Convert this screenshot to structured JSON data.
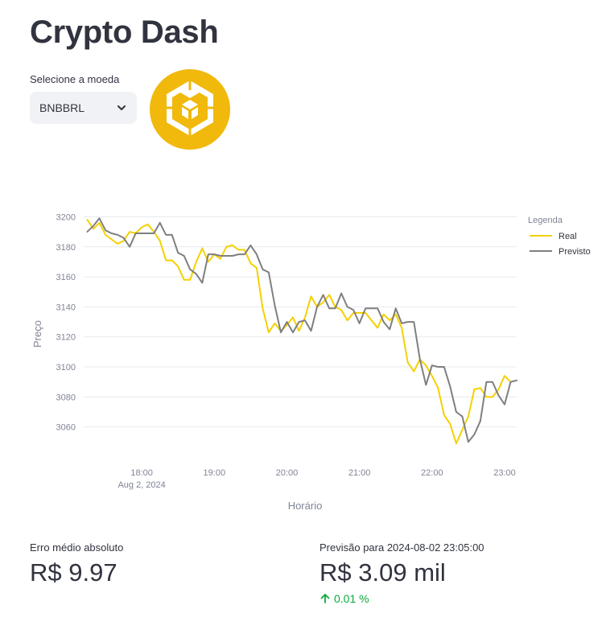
{
  "page": {
    "title": "Crypto Dash"
  },
  "coin_select": {
    "label": "Selecione a moeda",
    "value": "BNBBRL",
    "logo_color": "#f0b90b"
  },
  "chart_data": {
    "type": "line",
    "title": "",
    "xlabel": "Horário",
    "ylabel": "Preço",
    "ylim": [
      3040,
      3204
    ],
    "yticks": [
      3060,
      3080,
      3100,
      3120,
      3140,
      3160,
      3180,
      3200
    ],
    "x_ticks": [
      {
        "label": "18:00",
        "sublabel": "Aug 2, 2024"
      },
      {
        "label": "19:00",
        "sublabel": ""
      },
      {
        "label": "20:00",
        "sublabel": ""
      },
      {
        "label": "21:00",
        "sublabel": ""
      },
      {
        "label": "22:00",
        "sublabel": ""
      },
      {
        "label": "23:00",
        "sublabel": ""
      }
    ],
    "grid": "horizontal",
    "legend_title": "Legenda",
    "legend_position": "right",
    "series": [
      {
        "name": "Real",
        "color": "#f5d000",
        "points": [
          [
            "17:15",
            3198
          ],
          [
            "17:20",
            3192
          ],
          [
            "17:25",
            3196
          ],
          [
            "17:30",
            3188
          ],
          [
            "17:35",
            3185
          ],
          [
            "17:40",
            3182
          ],
          [
            "17:45",
            3184
          ],
          [
            "17:50",
            3190
          ],
          [
            "17:55",
            3189
          ],
          [
            "18:00",
            3193
          ],
          [
            "18:05",
            3195
          ],
          [
            "18:10",
            3190
          ],
          [
            "18:15",
            3184
          ],
          [
            "18:20",
            3171
          ],
          [
            "18:25",
            3171
          ],
          [
            "18:30",
            3167
          ],
          [
            "18:35",
            3158
          ],
          [
            "18:40",
            3158
          ],
          [
            "18:45",
            3170
          ],
          [
            "18:50",
            3179
          ],
          [
            "18:55",
            3170
          ],
          [
            "19:00",
            3175
          ],
          [
            "19:05",
            3172
          ],
          [
            "19:10",
            3180
          ],
          [
            "19:15",
            3181
          ],
          [
            "19:20",
            3178
          ],
          [
            "19:25",
            3178
          ],
          [
            "19:30",
            3169
          ],
          [
            "19:35",
            3166
          ],
          [
            "19:40",
            3139
          ],
          [
            "19:45",
            3123
          ],
          [
            "19:50",
            3129
          ],
          [
            "19:55",
            3124
          ],
          [
            "20:00",
            3128
          ],
          [
            "20:05",
            3133
          ],
          [
            "20:10",
            3124
          ],
          [
            "20:15",
            3133
          ],
          [
            "20:20",
            3147
          ],
          [
            "20:25",
            3140
          ],
          [
            "20:30",
            3143
          ],
          [
            "20:35",
            3148
          ],
          [
            "20:40",
            3140
          ],
          [
            "20:45",
            3138
          ],
          [
            "20:50",
            3131
          ],
          [
            "20:55",
            3136
          ],
          [
            "21:00",
            3136
          ],
          [
            "21:05",
            3136
          ],
          [
            "21:10",
            3131
          ],
          [
            "21:15",
            3126
          ],
          [
            "21:20",
            3135
          ],
          [
            "21:25",
            3131
          ],
          [
            "21:30",
            3135
          ],
          [
            "21:35",
            3126
          ],
          [
            "21:40",
            3103
          ],
          [
            "21:45",
            3097
          ],
          [
            "21:50",
            3105
          ],
          [
            "21:55",
            3101
          ],
          [
            "22:00",
            3094
          ],
          [
            "22:05",
            3086
          ],
          [
            "22:10",
            3068
          ],
          [
            "22:15",
            3062
          ],
          [
            "22:20",
            3049
          ],
          [
            "22:25",
            3058
          ],
          [
            "22:30",
            3067
          ],
          [
            "22:35",
            3085
          ],
          [
            "22:40",
            3086
          ],
          [
            "22:45",
            3080
          ],
          [
            "22:50",
            3080
          ],
          [
            "22:55",
            3085
          ],
          [
            "23:00",
            3094
          ],
          [
            "23:05",
            3090
          ]
        ]
      },
      {
        "name": "Previsto",
        "color": "#7f7f7f",
        "points": [
          [
            "17:15",
            3190
          ],
          [
            "17:20",
            3194
          ],
          [
            "17:25",
            3199
          ],
          [
            "17:30",
            3191
          ],
          [
            "17:35",
            3189
          ],
          [
            "17:40",
            3188
          ],
          [
            "17:45",
            3186
          ],
          [
            "17:50",
            3180
          ],
          [
            "17:55",
            3189
          ],
          [
            "18:00",
            3189
          ],
          [
            "18:05",
            3189
          ],
          [
            "18:10",
            3189
          ],
          [
            "18:15",
            3196
          ],
          [
            "18:20",
            3188
          ],
          [
            "18:25",
            3188
          ],
          [
            "18:30",
            3176
          ],
          [
            "18:35",
            3174
          ],
          [
            "18:40",
            3165
          ],
          [
            "18:45",
            3162
          ],
          [
            "18:50",
            3156
          ],
          [
            "18:55",
            3175
          ],
          [
            "19:00",
            3175
          ],
          [
            "19:05",
            3174
          ],
          [
            "19:10",
            3174
          ],
          [
            "19:15",
            3174
          ],
          [
            "19:20",
            3175
          ],
          [
            "19:25",
            3175
          ],
          [
            "19:30",
            3181
          ],
          [
            "19:35",
            3175
          ],
          [
            "19:40",
            3165
          ],
          [
            "19:45",
            3163
          ],
          [
            "19:50",
            3141
          ],
          [
            "19:55",
            3123
          ],
          [
            "20:00",
            3130
          ],
          [
            "20:05",
            3123
          ],
          [
            "20:10",
            3130
          ],
          [
            "20:15",
            3131
          ],
          [
            "20:20",
            3124
          ],
          [
            "20:25",
            3140
          ],
          [
            "20:30",
            3148
          ],
          [
            "20:35",
            3139
          ],
          [
            "20:40",
            3139
          ],
          [
            "20:45",
            3149
          ],
          [
            "20:50",
            3140
          ],
          [
            "20:55",
            3138
          ],
          [
            "21:00",
            3129
          ],
          [
            "21:05",
            3139
          ],
          [
            "21:10",
            3139
          ],
          [
            "21:15",
            3139
          ],
          [
            "21:20",
            3130
          ],
          [
            "21:25",
            3125
          ],
          [
            "21:30",
            3139
          ],
          [
            "21:35",
            3129
          ],
          [
            "21:40",
            3130
          ],
          [
            "21:45",
            3130
          ],
          [
            "21:50",
            3105
          ],
          [
            "21:55",
            3088
          ],
          [
            "22:00",
            3101
          ],
          [
            "22:05",
            3100
          ],
          [
            "22:10",
            3100
          ],
          [
            "22:15",
            3087
          ],
          [
            "22:20",
            3070
          ],
          [
            "22:25",
            3067
          ],
          [
            "22:30",
            3050
          ],
          [
            "22:35",
            3055
          ],
          [
            "22:40",
            3064
          ],
          [
            "22:45",
            3090
          ],
          [
            "22:50",
            3090
          ],
          [
            "22:55",
            3081
          ],
          [
            "23:00",
            3075
          ],
          [
            "23:05",
            3090
          ],
          [
            "23:10",
            3091
          ]
        ]
      }
    ]
  },
  "metrics": {
    "mae_label": "Erro médio absoluto",
    "mae_value": "R$ 9.97",
    "forecast_label": "Previsão para 2024-08-02 23:05:00",
    "forecast_value": "R$ 3.09 mil",
    "forecast_delta": "0.01 %",
    "delta_color": "#09ab3b"
  }
}
